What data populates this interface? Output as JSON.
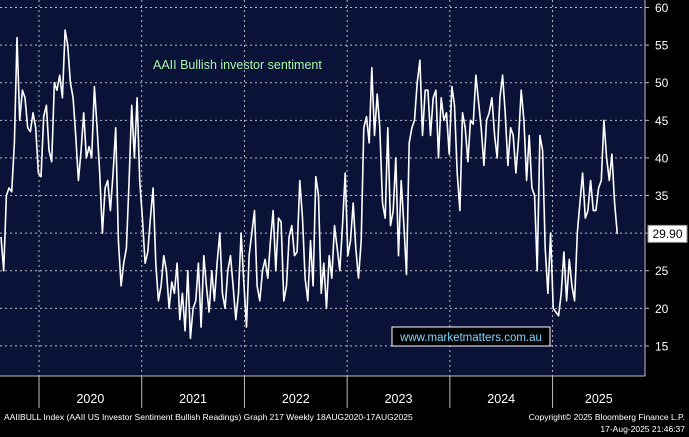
{
  "chart_data": {
    "type": "line",
    "title": "AAII Bullish investor sentiment",
    "watermark": "www.marketmatters.com.au",
    "last_value_label": "29.90",
    "ylim": [
      11,
      61
    ],
    "y_ticks": [
      15,
      20,
      25,
      30,
      35,
      40,
      45,
      50,
      55,
      60
    ],
    "x_ticks": [
      {
        "label": "2020",
        "t": 2020.0
      },
      {
        "label": "2021",
        "t": 2021.0
      },
      {
        "label": "2022",
        "t": 2022.0
      },
      {
        "label": "2023",
        "t": 2023.0
      },
      {
        "label": "2024",
        "t": 2024.0
      },
      {
        "label": "2025",
        "t": 2025.0
      }
    ],
    "x_start": 2019.62,
    "x_end": 2025.9,
    "series": [
      {
        "line_color": "#ffffff",
        "start": 2019.63,
        "end": 2025.63,
        "values": [
          29.5,
          25,
          35,
          36,
          35.5,
          42,
          56,
          45,
          49,
          48,
          44,
          43.5,
          46,
          44,
          38,
          37.5,
          45.5,
          47,
          41,
          39.5,
          50,
          49,
          51,
          48,
          57,
          55,
          50,
          48,
          43,
          37,
          41,
          46,
          40,
          41.5,
          40,
          49.5,
          44,
          38,
          30,
          36,
          37,
          33,
          38,
          44,
          29,
          23,
          26,
          28,
          37,
          47,
          40,
          48,
          37,
          32,
          26,
          27.5,
          32,
          36,
          26,
          21,
          23,
          27,
          25,
          20,
          23.5,
          22,
          26,
          18.5,
          22,
          17,
          25,
          16,
          20,
          21,
          26,
          17.5,
          27,
          23,
          19.5,
          25,
          21,
          26,
          30,
          22,
          20,
          25,
          27,
          23,
          18.5,
          22,
          30,
          23.5,
          17.5,
          27,
          30,
          33,
          23,
          21,
          25,
          26.5,
          24,
          29,
          33,
          25,
          32,
          31.5,
          21,
          23,
          29.5,
          31,
          27,
          27.5,
          37,
          32,
          24,
          21,
          29,
          23,
          37.5,
          35,
          22,
          26,
          20,
          27,
          24,
          31,
          28,
          25,
          31,
          38,
          27,
          29,
          34,
          28,
          24,
          29,
          44,
          45.5,
          42,
          52,
          43,
          48.5,
          44,
          34,
          32,
          44,
          31,
          33,
          40,
          27,
          37,
          31,
          24.5,
          42,
          44,
          45,
          50,
          53,
          43,
          49,
          49,
          43,
          48,
          49,
          40,
          48,
          45,
          46,
          40.5,
          49.5,
          47,
          38,
          33,
          46,
          44,
          39.5,
          45,
          44.5,
          51,
          47.5,
          44,
          39,
          45,
          46,
          48,
          43,
          40,
          48,
          51,
          46,
          39,
          44,
          43,
          38,
          42.5,
          49,
          45,
          37,
          43,
          36,
          35,
          25,
          43,
          41,
          28,
          22,
          30,
          20,
          19.5,
          19,
          22,
          27.5,
          21,
          26.5,
          23,
          21,
          30,
          34,
          38,
          32,
          33,
          37,
          33,
          33,
          36,
          37,
          45,
          40,
          37,
          40.5,
          34,
          29.9
        ]
      }
    ]
  },
  "footer": {
    "left": "AAIIBULL Index (AAII US Investor Sentiment Bullish Readings) Graph 217  Weekly 18AUG2020-17AUG2025",
    "right_line1": "Copyright© 2025 Bloomberg Finance L.P.",
    "right_line2": "17-Aug-2025 21:46:37"
  }
}
